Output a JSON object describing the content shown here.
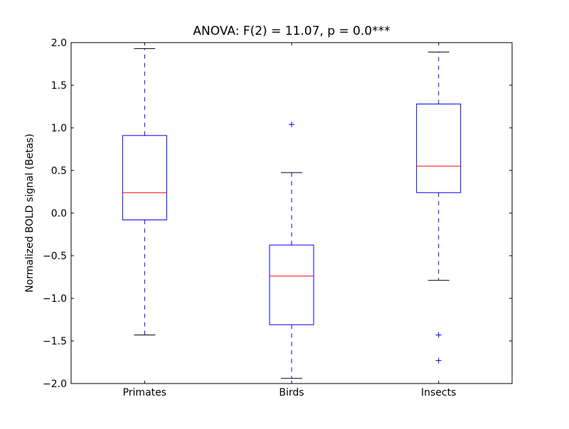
{
  "chart_data": {
    "type": "boxplot",
    "title": "ANOVA: F(2) = 11.07, p = 0.0***",
    "xlabel": "",
    "ylabel": "Normalized BOLD signal (Betas)",
    "ylim": [
      -2.0,
      2.0
    ],
    "yticks": [
      "2.0",
      "1.5",
      "1.0",
      "0.5",
      "0.0",
      "−0.5",
      "−1.0",
      "−1.5",
      "−2.0"
    ],
    "ytick_values": [
      2.0,
      1.5,
      1.0,
      0.5,
      0.0,
      -0.5,
      -1.0,
      -1.5,
      -2.0
    ],
    "grid": false,
    "categories": [
      "Primates",
      "Birds",
      "Insects"
    ],
    "boxes": [
      {
        "whisker_low": -1.43,
        "q1": -0.08,
        "median": 0.24,
        "q3": 0.91,
        "whisker_high": 1.93,
        "outliers": []
      },
      {
        "whisker_low": -1.94,
        "q1": -1.31,
        "median": -0.74,
        "q3": -0.375,
        "whisker_high": 0.475,
        "outliers": [
          1.04
        ]
      },
      {
        "whisker_low": -0.79,
        "q1": 0.24,
        "median": 0.55,
        "q3": 1.28,
        "whisker_high": 1.89,
        "outliers": [
          -1.43,
          -1.73
        ]
      }
    ],
    "colors": {
      "box": "#0000ff",
      "median": "#ff0000",
      "whisker": "#0000ff",
      "cap": "#000000",
      "outlier": "#0000ff"
    }
  }
}
